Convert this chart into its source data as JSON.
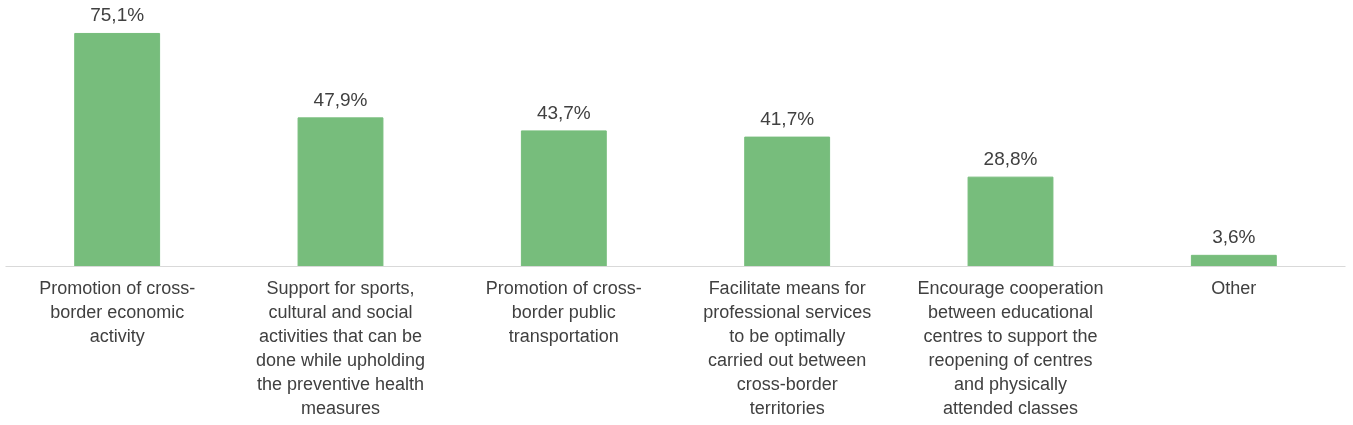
{
  "chart_data": {
    "type": "bar",
    "categories": [
      "Promotion of cross-border economic activity",
      "Support for sports, cultural and social activities that can be done while upholding the preventive health measures",
      "Promotion of cross-border public transportation",
      "Facilitate means for professional services to be optimally carried out between cross-border territories",
      "Encourage cooperation between educational centres to support the reopening of centres and physically attended classes",
      "Other"
    ],
    "values": [
      75.1,
      47.9,
      43.7,
      41.7,
      28.8,
      3.6
    ],
    "value_labels": [
      "75,1%",
      "47,9%",
      "43,7%",
      "41,7%",
      "28,8%",
      "3,6%"
    ],
    "color": "#77bd7c",
    "tick_labels": "x",
    "grid": false
  }
}
